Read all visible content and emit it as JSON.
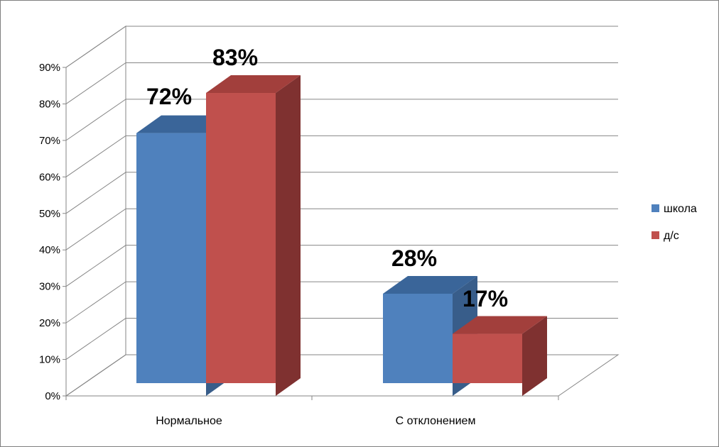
{
  "chart_data": {
    "type": "bar",
    "title": "",
    "xlabel": "",
    "ylabel": "",
    "categories": [
      "Нормальное",
      "С отклонением"
    ],
    "series": [
      {
        "name": "школа",
        "values": [
          72,
          28
        ],
        "color": "#4f81bd",
        "top_color": "#3a6599",
        "side_color": "#385d8a"
      },
      {
        "name": "д/с",
        "values": [
          83,
          17
        ],
        "color": "#c0504d",
        "top_color": "#a23f3c",
        "side_color": "#7f3130"
      }
    ],
    "data_labels": [
      [
        "72%",
        "28%"
      ],
      [
        "83%",
        "17%"
      ]
    ],
    "ylim": [
      0,
      90
    ],
    "y_ticks": [
      "0%",
      "10%",
      "20%",
      "30%",
      "40%",
      "50%",
      "60%",
      "70%",
      "80%",
      "90%"
    ],
    "grid": true,
    "legend_position": "right",
    "three_d": true
  }
}
